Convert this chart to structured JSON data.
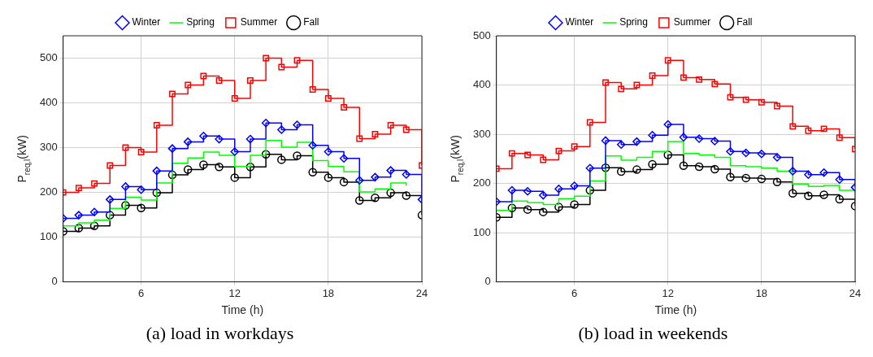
{
  "chart_data": [
    {
      "type": "step",
      "xlabel": "Time (h)",
      "ylabel": "P$_{req,l}$(kW)",
      "x": [
        1,
        2,
        3,
        4,
        5,
        6,
        7,
        8,
        9,
        10,
        11,
        12,
        13,
        14,
        15,
        16,
        17,
        18,
        19,
        20,
        21,
        22,
        23,
        24
      ],
      "xlim": [
        1,
        24
      ],
      "xticks": [
        6,
        12,
        18,
        24
      ],
      "ylim": [
        0,
        550
      ],
      "yticks": [
        0,
        100,
        200,
        300,
        400,
        500
      ],
      "grid": true,
      "legend": "top",
      "annotations": [
        "(a) load in workdays"
      ],
      "series": [
        {
          "name": "Winter",
          "color": "#0000ff",
          "marker": "diamond",
          "values": [
            142,
            149,
            156,
            184,
            213,
            206,
            248,
            298,
            313,
            326,
            319,
            291,
            319,
            355,
            340,
            351,
            305,
            291,
            276,
            227,
            234,
            249,
            240,
            184
          ]
        },
        {
          "name": "Spring",
          "color": "#00ff00",
          "marker": "none",
          "values": [
            125,
            132,
            138,
            164,
            189,
            183,
            221,
            265,
            277,
            290,
            283,
            258,
            283,
            316,
            301,
            312,
            271,
            258,
            246,
            201,
            208,
            221,
            215,
            null
          ]
        },
        {
          "name": "Summer",
          "color": "#ff0000",
          "marker": "square",
          "values": [
            200,
            210,
            220,
            260,
            300,
            290,
            350,
            420,
            440,
            460,
            450,
            410,
            450,
            500,
            480,
            495,
            430,
            410,
            390,
            320,
            330,
            350,
            340,
            260
          ]
        },
        {
          "name": "Fall",
          "color": "#000000",
          "marker": "circle",
          "values": [
            113,
            120,
            125,
            149,
            171,
            165,
            199,
            239,
            251,
            262,
            257,
            233,
            257,
            285,
            273,
            282,
            245,
            233,
            223,
            182,
            188,
            199,
            193,
            149
          ]
        }
      ]
    },
    {
      "type": "step",
      "xlabel": "Time (h)",
      "ylabel": "P$_{req,l}$(kW)",
      "x": [
        1,
        2,
        3,
        4,
        5,
        6,
        7,
        8,
        9,
        10,
        11,
        12,
        13,
        14,
        15,
        16,
        17,
        18,
        19,
        20,
        21,
        22,
        23,
        24
      ],
      "xlim": [
        1,
        24
      ],
      "xticks": [
        6,
        12,
        18,
        24
      ],
      "ylim": [
        0,
        500
      ],
      "yticks": [
        0,
        100,
        200,
        300,
        400,
        500
      ],
      "grid": true,
      "legend": "top",
      "annotations": [
        "(b) load in weekends"
      ],
      "series": [
        {
          "name": "Winter",
          "color": "#0000ff",
          "marker": "diamond",
          "values": [
            163,
            186,
            184,
            176,
            189,
            195,
            231,
            287,
            279,
            285,
            298,
            320,
            294,
            291,
            286,
            265,
            262,
            260,
            253,
            225,
            218,
            222,
            208,
            192
          ]
        },
        {
          "name": "Spring",
          "color": "#00ff00",
          "marker": "none",
          "values": [
            145,
            164,
            161,
            157,
            169,
            174,
            205,
            256,
            247,
            253,
            265,
            285,
            261,
            258,
            253,
            236,
            234,
            231,
            225,
            199,
            194,
            196,
            186,
            170
          ]
        },
        {
          "name": "Summer",
          "color": "#ff0000",
          "marker": "square",
          "values": [
            230,
            261,
            258,
            248,
            266,
            275,
            324,
            405,
            392,
            400,
            419,
            450,
            415,
            411,
            402,
            375,
            370,
            365,
            357,
            316,
            307,
            311,
            293,
            270
          ]
        },
        {
          "name": "Fall",
          "color": "#000000",
          "marker": "circle",
          "values": [
            131,
            150,
            147,
            142,
            152,
            157,
            186,
            232,
            224,
            228,
            239,
            258,
            236,
            234,
            229,
            213,
            211,
            209,
            203,
            180,
            175,
            177,
            168,
            154
          ]
        }
      ]
    }
  ]
}
